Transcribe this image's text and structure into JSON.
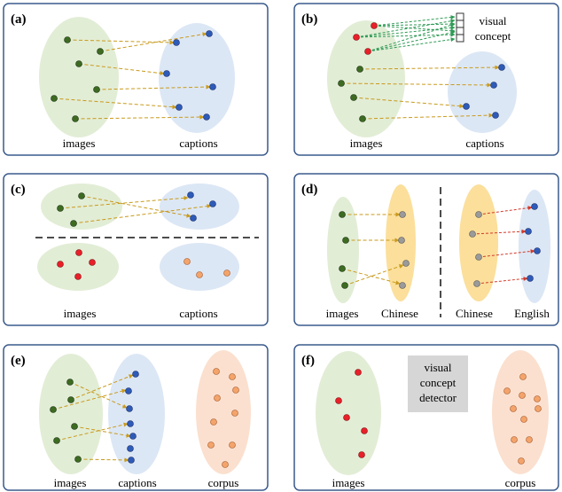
{
  "colors": {
    "frame": "#3a5a8c",
    "image_ellipse": "#e2edd6",
    "caption_ellipse": "#dce7f5",
    "chinese_ellipse": "#fbdf9b",
    "corpus_ellipse": "#fbe0cf",
    "image_dot": "#3d6b22",
    "caption_dot": "#2e5bb8",
    "red_dot": "#e8202a",
    "orange_dot": "#f4a46a",
    "gray_dot": "#9a9a9a",
    "arrow_gold": "#c99a1c",
    "arrow_green": "#2e9a55",
    "arrow_red": "#d43a2a",
    "detector_bg": "#d6d6d6"
  },
  "panels": {
    "a": {
      "tag": "(a)",
      "left_label": "images",
      "right_label": "captions"
    },
    "b": {
      "tag": "(b)",
      "left_label": "images",
      "right_label": "captions",
      "concept_line1": "visual",
      "concept_line2": "concept"
    },
    "c": {
      "tag": "(c)",
      "left_label": "images",
      "right_label": "captions"
    },
    "d": {
      "tag": "(d)",
      "label1": "images",
      "label2": "Chinese",
      "label3": "Chinese",
      "label4": "English"
    },
    "e": {
      "tag": "(e)",
      "left_label": "images",
      "mid_label": "captions",
      "right_label": "corpus"
    },
    "f": {
      "tag": "(f)",
      "left_label": "images",
      "right_label": "corpus",
      "detector_line1": "visual",
      "detector_line2": "concept",
      "detector_line3": "detector"
    }
  }
}
